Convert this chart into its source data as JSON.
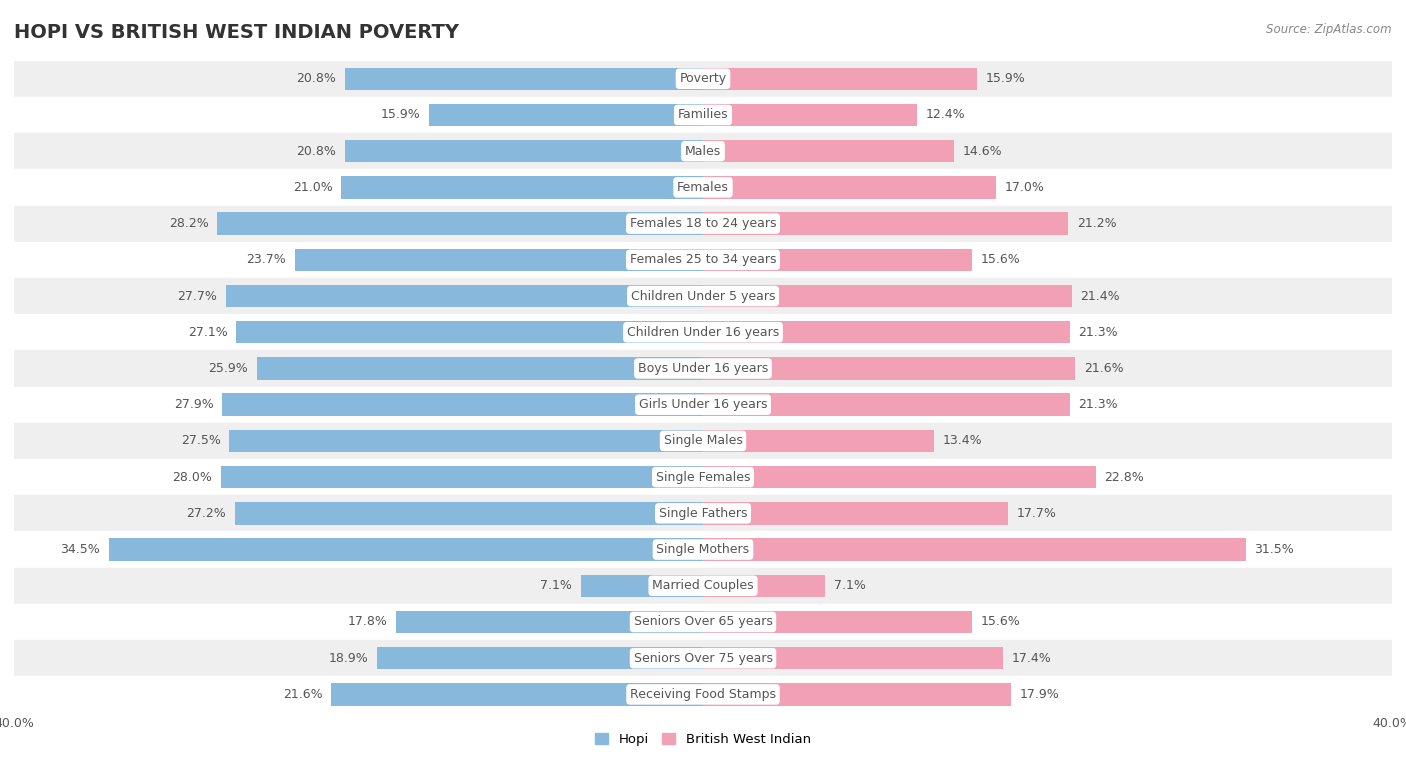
{
  "title": "HOPI VS BRITISH WEST INDIAN POVERTY",
  "source": "Source: ZipAtlas.com",
  "categories": [
    "Poverty",
    "Families",
    "Males",
    "Females",
    "Females 18 to 24 years",
    "Females 25 to 34 years",
    "Children Under 5 years",
    "Children Under 16 years",
    "Boys Under 16 years",
    "Girls Under 16 years",
    "Single Males",
    "Single Females",
    "Single Fathers",
    "Single Mothers",
    "Married Couples",
    "Seniors Over 65 years",
    "Seniors Over 75 years",
    "Receiving Food Stamps"
  ],
  "hopi_values": [
    20.8,
    15.9,
    20.8,
    21.0,
    28.2,
    23.7,
    27.7,
    27.1,
    25.9,
    27.9,
    27.5,
    28.0,
    27.2,
    34.5,
    7.1,
    17.8,
    18.9,
    21.6
  ],
  "bwi_values": [
    15.9,
    12.4,
    14.6,
    17.0,
    21.2,
    15.6,
    21.4,
    21.3,
    21.6,
    21.3,
    13.4,
    22.8,
    17.7,
    31.5,
    7.1,
    15.6,
    17.4,
    17.9
  ],
  "hopi_color": "#88b8db",
  "bwi_color": "#f2a0b5",
  "axis_limit": 40.0,
  "bar_height": 0.62,
  "bg_color_odd": "#efefef",
  "bg_color_even": "#ffffff",
  "title_fontsize": 14,
  "label_fontsize": 9,
  "value_fontsize": 9,
  "legend_label_hopi": "Hopi",
  "legend_label_bwi": "British West Indian"
}
